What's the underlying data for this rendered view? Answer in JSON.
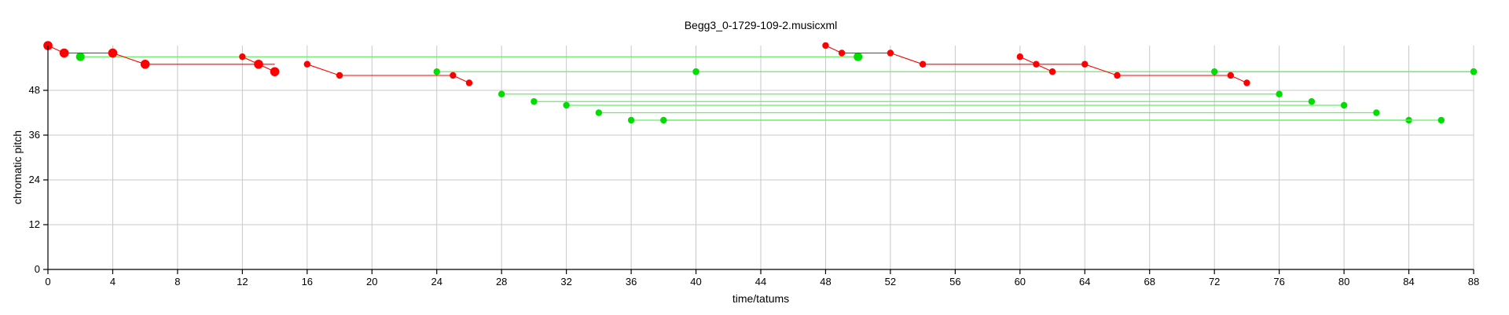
{
  "chart_data": {
    "type": "scatter",
    "title": "Begg3_0-1729-109-2.musicxml",
    "xlabel": "time/tatums",
    "ylabel": "chromatic pitch",
    "xlim": [
      0,
      88
    ],
    "ylim": [
      0,
      60
    ],
    "xticks": [
      0,
      4,
      8,
      12,
      16,
      20,
      24,
      28,
      32,
      36,
      40,
      44,
      48,
      52,
      56,
      60,
      64,
      68,
      72,
      76,
      80,
      84,
      88
    ],
    "yticks": [
      0,
      12,
      24,
      36,
      48
    ],
    "grid": true,
    "colors": {
      "red": "#ff0000",
      "green": "#00dd00",
      "green_line": "#66ee66"
    },
    "red_paths": [
      [
        [
          0,
          60
        ],
        [
          1,
          58
        ],
        [
          4,
          58
        ],
        [
          6,
          55
        ],
        [
          14,
          55
        ]
      ],
      [
        [
          12,
          57
        ],
        [
          13,
          55
        ],
        [
          14,
          53
        ]
      ],
      [
        [
          16,
          55
        ],
        [
          18,
          52
        ],
        [
          25,
          52
        ],
        [
          26,
          50
        ]
      ],
      [
        [
          48,
          60
        ],
        [
          49,
          58
        ],
        [
          52,
          58
        ],
        [
          54,
          55
        ],
        [
          64,
          55
        ],
        [
          66,
          52
        ],
        [
          73,
          52
        ],
        [
          74,
          50
        ]
      ],
      [
        [
          60,
          57
        ],
        [
          61,
          55
        ],
        [
          62,
          53
        ]
      ]
    ],
    "red_points": [
      {
        "x": 0,
        "y": 60,
        "big": true
      },
      {
        "x": 1,
        "y": 58,
        "big": true
      },
      {
        "x": 4,
        "y": 58,
        "big": true
      },
      {
        "x": 6,
        "y": 55,
        "big": true
      },
      {
        "x": 12,
        "y": 57,
        "big": false
      },
      {
        "x": 13,
        "y": 55,
        "big": true
      },
      {
        "x": 14,
        "y": 53,
        "big": true
      },
      {
        "x": 16,
        "y": 55,
        "big": false
      },
      {
        "x": 18,
        "y": 52,
        "big": false
      },
      {
        "x": 25,
        "y": 52,
        "big": false
      },
      {
        "x": 26,
        "y": 50,
        "big": false
      },
      {
        "x": 48,
        "y": 60,
        "big": false
      },
      {
        "x": 49,
        "y": 58,
        "big": false
      },
      {
        "x": 52,
        "y": 58,
        "big": false
      },
      {
        "x": 54,
        "y": 55,
        "big": false
      },
      {
        "x": 60,
        "y": 57,
        "big": false
      },
      {
        "x": 61,
        "y": 55,
        "big": false
      },
      {
        "x": 62,
        "y": 53,
        "big": false
      },
      {
        "x": 64,
        "y": 55,
        "big": false
      },
      {
        "x": 66,
        "y": 52,
        "big": false
      },
      {
        "x": 73,
        "y": 52,
        "big": false
      },
      {
        "x": 74,
        "y": 50,
        "big": false
      }
    ],
    "green_segments": [
      {
        "x1": 2,
        "x2": 50,
        "y": 57,
        "big_ends": true
      },
      {
        "x1": 24,
        "x2": 40,
        "y": 53,
        "big_ends": false
      },
      {
        "x1": 40,
        "x2": 88,
        "y": 53,
        "big_ends": false
      },
      {
        "x1": 72,
        "x2": 88,
        "y": 53,
        "big_ends": false
      },
      {
        "x1": 28,
        "x2": 76,
        "y": 47,
        "big_ends": false
      },
      {
        "x1": 30,
        "x2": 78,
        "y": 45,
        "big_ends": false
      },
      {
        "x1": 32,
        "x2": 80,
        "y": 44,
        "big_ends": false
      },
      {
        "x1": 34,
        "x2": 82,
        "y": 42,
        "big_ends": false
      },
      {
        "x1": 36,
        "x2": 84,
        "y": 40,
        "big_ends": false
      },
      {
        "x1": 38,
        "x2": 86,
        "y": 40,
        "big_ends": false
      }
    ]
  }
}
